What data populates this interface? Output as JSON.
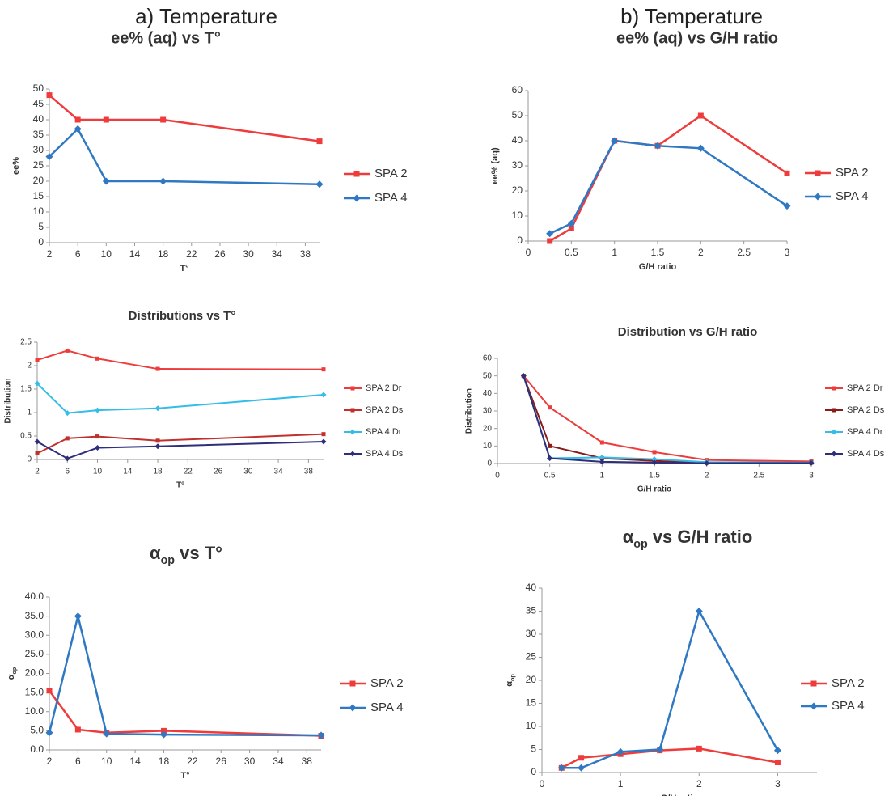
{
  "headers": [
    "a) Temperature",
    "b) Temperature"
  ],
  "chart_data": [
    {
      "type": "line",
      "title": "ee% (aq) vs T°",
      "x_label": "T°",
      "y_label": "ee%",
      "x": [
        2,
        6,
        10,
        18,
        40
      ],
      "xlim": [
        2,
        40
      ],
      "xticks": [
        2,
        6,
        10,
        14,
        18,
        22,
        26,
        30,
        34,
        38
      ],
      "ylim": [
        0,
        50
      ],
      "yticks": [
        0,
        5,
        10,
        15,
        20,
        25,
        30,
        35,
        40,
        45,
        50
      ],
      "series": [
        {
          "name": "SPA 2",
          "color": "#ee3b3b",
          "marker": "square",
          "values": [
            48,
            40,
            40,
            40,
            33
          ]
        },
        {
          "name": "SPA 4",
          "color": "#2e78c4",
          "marker": "diamond",
          "values": [
            28,
            37,
            20,
            20,
            19
          ]
        }
      ]
    },
    {
      "type": "line",
      "title": "ee% (aq) vs G/H ratio",
      "x_label": "G/H ratio",
      "y_label": "ee% (aq)",
      "x": [
        0.25,
        0.5,
        1,
        1.5,
        2,
        3
      ],
      "xlim": [
        0,
        3
      ],
      "xticks": [
        0,
        0.5,
        1,
        1.5,
        2,
        2.5,
        3
      ],
      "ylim": [
        0,
        60
      ],
      "yticks": [
        0,
        10,
        20,
        30,
        40,
        50,
        60
      ],
      "series": [
        {
          "name": "SPA 2",
          "color": "#ee3b3b",
          "marker": "square",
          "values": [
            0,
            5,
            40,
            38,
            50,
            27
          ]
        },
        {
          "name": "SPA 4",
          "color": "#2e78c4",
          "marker": "diamond",
          "values": [
            3,
            7,
            40,
            38,
            37,
            14
          ]
        }
      ]
    },
    {
      "type": "line",
      "title": "Distributions vs T°",
      "x_label": "T°",
      "y_label": "Distribution",
      "x": [
        2,
        6,
        10,
        18,
        40
      ],
      "xlim": [
        2,
        40
      ],
      "xticks": [
        2,
        6,
        10,
        14,
        18,
        22,
        26,
        30,
        34,
        38
      ],
      "ylim": [
        0,
        2.5
      ],
      "yticks": [
        0,
        0.5,
        1,
        1.5,
        2,
        2.5
      ],
      "series": [
        {
          "name": "SPA 2 Dr",
          "color": "#ee3b3b",
          "marker": "square",
          "values": [
            2.12,
            2.32,
            2.15,
            1.93,
            1.92
          ]
        },
        {
          "name": "SPA 2 Ds",
          "color": "#c0302c",
          "marker": "square",
          "values": [
            0.13,
            0.45,
            0.49,
            0.4,
            0.54
          ]
        },
        {
          "name": "SPA 4 Dr",
          "color": "#33bde8",
          "marker": "diamond",
          "values": [
            1.62,
            0.99,
            1.05,
            1.09,
            1.38
          ]
        },
        {
          "name": "SPA 4 Ds",
          "color": "#2e2e7a",
          "marker": "diamond",
          "values": [
            0.38,
            0.02,
            0.25,
            0.28,
            0.38
          ]
        }
      ]
    },
    {
      "type": "line",
      "title": "Distribution vs G/H ratio",
      "x_label": "G/H ratio",
      "y_label": "Distribution",
      "x": [
        0.25,
        0.5,
        1,
        1.5,
        2,
        3
      ],
      "xlim": [
        0,
        3
      ],
      "xticks": [
        0,
        0.5,
        1,
        1.5,
        2,
        2.5,
        3
      ],
      "ylim": [
        0,
        60
      ],
      "yticks": [
        0,
        10,
        20,
        30,
        40,
        50,
        60
      ],
      "series": [
        {
          "name": "SPA 2 Dr",
          "color": "#ee3b3b",
          "marker": "square",
          "values": [
            50,
            32,
            12,
            6.5,
            2,
            1.2
          ]
        },
        {
          "name": "SPA 2 Ds",
          "color": "#8b1a1a",
          "marker": "square",
          "values": [
            50,
            10,
            3,
            1.5,
            0.5,
            0.5
          ]
        },
        {
          "name": "SPA 4 Dr",
          "color": "#33bde8",
          "marker": "diamond",
          "values": [
            50,
            3,
            3.5,
            2.5,
            0.8,
            0.5
          ]
        },
        {
          "name": "SPA 4 Ds",
          "color": "#2e2e7a",
          "marker": "diamond",
          "values": [
            50,
            3,
            1,
            0.5,
            0.2,
            0.3
          ]
        }
      ]
    },
    {
      "type": "line",
      "title": [
        "α",
        "op",
        " vs T°"
      ],
      "x_label": "T°",
      "y_label": [
        "α",
        "op"
      ],
      "x": [
        2,
        6,
        10,
        18,
        40
      ],
      "xlim": [
        2,
        40
      ],
      "xticks": [
        2,
        6,
        10,
        14,
        18,
        22,
        26,
        30,
        34,
        38
      ],
      "ylim": [
        0,
        40
      ],
      "yticks": [
        {
          "value": 0,
          "label": "0.0"
        },
        {
          "value": 5,
          "label": "5.0"
        },
        {
          "value": 10,
          "label": "10.0"
        },
        {
          "value": 15,
          "label": "15.0"
        },
        {
          "value": 20,
          "label": "20.0"
        },
        {
          "value": 25,
          "label": "25.0"
        },
        {
          "value": 30,
          "label": "30.0"
        },
        {
          "value": 35,
          "label": "35.0"
        },
        {
          "value": 40,
          "label": "40.0"
        }
      ],
      "series": [
        {
          "name": "SPA 2",
          "color": "#ee3b3b",
          "marker": "square",
          "values": [
            15.5,
            5.3,
            4.5,
            5.0,
            3.7
          ]
        },
        {
          "name": "SPA 4",
          "color": "#2e78c4",
          "marker": "diamond",
          "values": [
            4.5,
            35,
            4.2,
            4.0,
            3.8
          ]
        }
      ]
    },
    {
      "type": "line",
      "title": [
        "α",
        "op",
        " vs G/H ratio"
      ],
      "x_label": "G/H ratio",
      "y_label": [
        "α",
        "op"
      ],
      "x": [
        0.25,
        0.5,
        1,
        1.5,
        2,
        3
      ],
      "xlim": [
        0,
        3.5
      ],
      "xticks": [
        0,
        1,
        2,
        3
      ],
      "ylim": [
        0,
        40
      ],
      "yticks": [
        0,
        5,
        10,
        15,
        20,
        25,
        30,
        35,
        40
      ],
      "series": [
        {
          "name": "SPA 2",
          "color": "#ee3b3b",
          "marker": "square",
          "values": [
            1,
            3.2,
            4,
            4.8,
            5.2,
            2.2
          ]
        },
        {
          "name": "SPA 4",
          "color": "#2e78c4",
          "marker": "diamond",
          "values": [
            1,
            1,
            4.5,
            5,
            35,
            4.8
          ]
        }
      ]
    }
  ]
}
